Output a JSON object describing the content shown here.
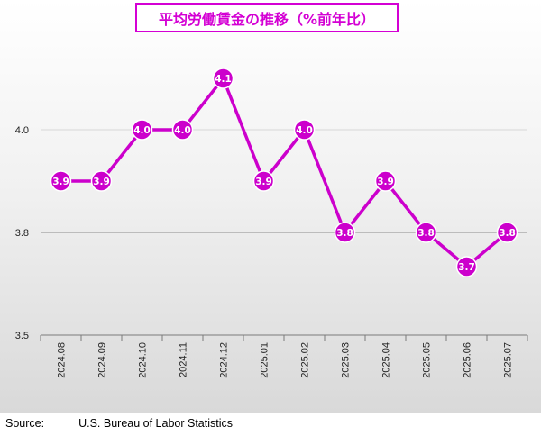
{
  "chart_data": {
    "type": "line",
    "title": "平均労働賃金の推移（%前年比）",
    "categories": [
      "2024.08",
      "2024.09",
      "2024.10",
      "2024.11",
      "2024.12",
      "2025.01",
      "2025.02",
      "2025.03",
      "2025.04",
      "2025.05",
      "2025.06",
      "2025.07"
    ],
    "series": [
      {
        "values": [
          3.9,
          3.9,
          4.0,
          4.0,
          4.1,
          3.9,
          4.0,
          3.8,
          3.9,
          3.8,
          3.7,
          3.8
        ]
      }
    ],
    "y_ticks": [
      "3.5",
      "3.8",
      "4.0"
    ],
    "grid": true,
    "line_color": "#cc00cc",
    "marker_color": "#cc00cc"
  },
  "source": {
    "label": "Source:",
    "name": "U.S. Bureau of Labor Statistics"
  }
}
